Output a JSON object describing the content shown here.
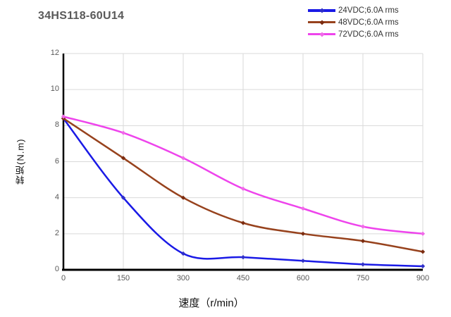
{
  "title": "34HS118-60U14",
  "chart_data": {
    "type": "line",
    "title": "34HS118-60U14",
    "xlabel": "速度（r/min）",
    "ylabel": "转矩(N.m)",
    "xlim": [
      0,
      900
    ],
    "ylim": [
      0,
      12
    ],
    "xticks": [
      0,
      150,
      300,
      450,
      600,
      750,
      900
    ],
    "yticks": [
      0,
      2,
      4,
      6,
      8,
      10,
      12
    ],
    "grid": true,
    "smooth": true,
    "legend_position": "top-right",
    "grid_color": "#d9d9d9",
    "axis_color": "#000000",
    "x": [
      0,
      150,
      300,
      450,
      600,
      750,
      900
    ],
    "series": [
      {
        "name": "24VDC;6.0A rms",
        "color": "#1a1ae6",
        "marker_color": "#2f2fc8",
        "values": [
          8.4,
          4.0,
          0.9,
          0.7,
          0.5,
          0.3,
          0.2
        ]
      },
      {
        "name": "48VDC;6.0A rms",
        "color": "#97421d",
        "marker_color": "#7b2c10",
        "values": [
          8.4,
          6.2,
          4.0,
          2.6,
          2.0,
          1.6,
          1.0
        ]
      },
      {
        "name": "72VDC;6.0A rms",
        "color": "#ee44ec",
        "marker_color": "#f06ae8",
        "values": [
          8.5,
          7.6,
          6.2,
          4.5,
          3.4,
          2.4,
          2.0
        ]
      }
    ]
  }
}
